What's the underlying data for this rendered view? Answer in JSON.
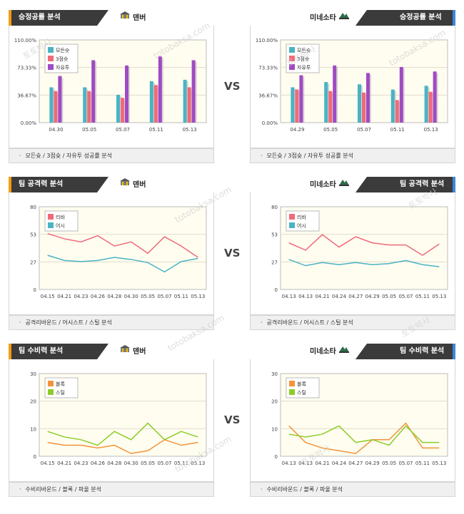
{
  "vs": "VS",
  "watermark": [
    "토토박사",
    "totobaksa.com"
  ],
  "colors": {
    "left_accent": "#f39c12",
    "right_accent": "#3a86d9",
    "teal": "#4ab3c4",
    "red": "#f06a79",
    "purple": "#a04ac4",
    "orange": "#f5933a",
    "green": "#8ccc2a",
    "plot_bg": "#fffdf0"
  },
  "rows": [
    {
      "left": {
        "title": "승정공률 분석",
        "team": "덴버",
        "team_icon": "denver-logo-icon",
        "footer": "모든슛 / 3점슛 / 자유투 성공률 분석",
        "chart_data": {
          "type": "bar",
          "categories": [
            "04.30",
            "05.05",
            "05.07",
            "05.11",
            "05.13"
          ],
          "ylim": [
            0,
            110
          ],
          "yticks": [
            "0.00%",
            "36.67%",
            "73.33%",
            "110.00%"
          ],
          "series": [
            {
              "name": "모든슛",
              "color": "#4ab3c4",
              "values": [
                47,
                47,
                37,
                55,
                57
              ]
            },
            {
              "name": "3점슛",
              "color": "#f06a79",
              "values": [
                42,
                42,
                33,
                50,
                47
              ]
            },
            {
              "name": "자유투",
              "color": "#a04ac4",
              "values": [
                62,
                83,
                76,
                88,
                83
              ]
            }
          ]
        }
      },
      "right": {
        "title": "승정공률 분석",
        "team": "미네소타",
        "team_icon": "minnesota-logo-icon",
        "footer": "모든슛 / 3점슛 / 자유투 성공률 분석",
        "chart_data": {
          "type": "bar",
          "categories": [
            "04.29",
            "05.05",
            "05.07",
            "05.11",
            "05.13"
          ],
          "ylim": [
            0,
            110
          ],
          "yticks": [
            "0.00%",
            "36.67%",
            "73.33%",
            "110.00%"
          ],
          "series": [
            {
              "name": "모든슛",
              "color": "#4ab3c4",
              "values": [
                47,
                54,
                51,
                44,
                49
              ]
            },
            {
              "name": "3점슛",
              "color": "#f06a79",
              "values": [
                44,
                42,
                40,
                30,
                41
              ]
            },
            {
              "name": "자유투",
              "color": "#a04ac4",
              "values": [
                63,
                76,
                66,
                74,
                68
              ]
            }
          ]
        }
      }
    },
    {
      "left": {
        "title": "팀 공격력 분석",
        "team": "덴버",
        "team_icon": "denver-logo-icon",
        "footer": "공격리바운드 / 어시스트 / 스틸 분석",
        "chart_data": {
          "type": "line",
          "categories": [
            "04.15",
            "04.21",
            "04.23",
            "04.26",
            "04.28",
            "04.30",
            "05.05",
            "05.07",
            "05.11",
            "05.13"
          ],
          "ylim": [
            0,
            80
          ],
          "yticks": [
            "0",
            "27",
            "53",
            "80"
          ],
          "series": [
            {
              "name": "리바",
              "color": "#f06a79",
              "values": [
                54,
                49,
                46,
                52,
                42,
                46,
                35,
                51,
                42,
                31
              ]
            },
            {
              "name": "어시",
              "color": "#4ab3c4",
              "values": [
                33,
                28,
                27,
                28,
                31,
                29,
                26,
                17,
                27,
                30
              ]
            }
          ]
        }
      },
      "right": {
        "title": "팀 공격력 분석",
        "team": "미네소타",
        "team_icon": "minnesota-logo-icon",
        "footer": "공격리바운드 / 어시스트 / 스틸 분석",
        "chart_data": {
          "type": "line",
          "categories": [
            "04.13",
            "04.13",
            "04.21",
            "04.24",
            "04.27",
            "04.29",
            "05.05",
            "05.07",
            "05.11",
            "05.13"
          ],
          "ylim": [
            0,
            80
          ],
          "yticks": [
            "0",
            "27",
            "53",
            "80"
          ],
          "series": [
            {
              "name": "리바",
              "color": "#f06a79",
              "values": [
                45,
                38,
                53,
                41,
                51,
                45,
                43,
                43,
                33,
                44
              ]
            },
            {
              "name": "어시",
              "color": "#4ab3c4",
              "values": [
                29,
                23,
                26,
                24,
                26,
                24,
                25,
                28,
                24,
                22
              ]
            }
          ]
        }
      }
    },
    {
      "left": {
        "title": "팀 수비력 분석",
        "team": "덴버",
        "team_icon": "denver-logo-icon",
        "footer": "수비리바운드 / 블록 / 파울 분석",
        "chart_data": {
          "type": "line",
          "categories": [
            "04.15",
            "04.21",
            "04.23",
            "04.26",
            "04.28",
            "04.30",
            "05.05",
            "05.07",
            "05.11",
            "05.13"
          ],
          "ylim": [
            0,
            30
          ],
          "yticks": [
            "0",
            "10",
            "20",
            "30"
          ],
          "series": [
            {
              "name": "블록",
              "color": "#f5933a",
              "values": [
                5,
                4,
                4,
                3,
                4,
                1,
                2,
                6,
                4,
                5
              ]
            },
            {
              "name": "스틸",
              "color": "#8ccc2a",
              "values": [
                9,
                7,
                6,
                4,
                9,
                6,
                12,
                6,
                9,
                7
              ]
            }
          ]
        }
      },
      "right": {
        "title": "팀 수비력 분석",
        "team": "미네소타",
        "team_icon": "minnesota-logo-icon",
        "footer": "수비리바운드 / 블록 / 파울 분석",
        "chart_data": {
          "type": "line",
          "categories": [
            "04.13",
            "04.13",
            "04.21",
            "04.24",
            "04.27",
            "04.29",
            "05.05",
            "05.07",
            "05.11",
            "05.13"
          ],
          "ylim": [
            0,
            30
          ],
          "yticks": [
            "0",
            "10",
            "20",
            "30"
          ],
          "series": [
            {
              "name": "블록",
              "color": "#f5933a",
              "values": [
                11,
                5,
                3,
                2,
                1,
                6,
                6,
                12,
                3,
                3
              ]
            },
            {
              "name": "스틸",
              "color": "#8ccc2a",
              "values": [
                8,
                7,
                8,
                11,
                5,
                6,
                4,
                11,
                5,
                5
              ]
            }
          ]
        }
      }
    }
  ]
}
